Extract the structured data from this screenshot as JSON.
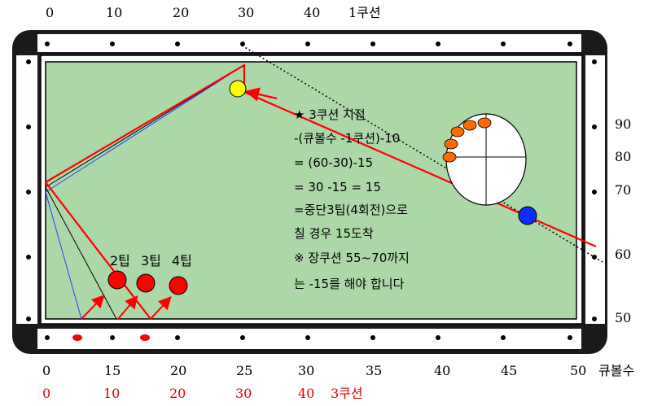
{
  "top_scale": {
    "labels": [
      "0",
      "10",
      "20",
      "30",
      "40"
    ],
    "title": "1쿠션"
  },
  "right_scale": {
    "labels": [
      "90",
      "80",
      "70",
      "60",
      "50"
    ]
  },
  "bottom_scale": {
    "labels": [
      "0",
      "15",
      "20",
      "25",
      "30",
      "35",
      "40",
      "45",
      "50"
    ],
    "title": "큐볼수"
  },
  "third_cushion_scale": {
    "labels": [
      "0",
      "10",
      "20",
      "30",
      "40"
    ],
    "title": "3쿠션"
  },
  "tips": {
    "labels": [
      "2팁",
      "3팁",
      "4팁"
    ]
  },
  "note": {
    "lines": [
      "★  3쿠션 지점",
      "-(큐볼수 -1쿠션)-10",
      "=  (60-30)-15",
      "=  30  -15  =  15",
      "=중단3팁(4회전)으로",
      " 칠  경우  15도착",
      "※   장쿠션   55~70까지",
      "는  -15를  해야  합니다"
    ]
  },
  "colors": {
    "cloth": "#acd8a8",
    "rail": "#ffffff",
    "frame": "#1a1a1a",
    "path": "#ff0000",
    "cue_ball": "#0a2cff",
    "object_ball": "#ffff00",
    "tip_ball": "#ff0000",
    "english_dot": "#ff6a00"
  }
}
